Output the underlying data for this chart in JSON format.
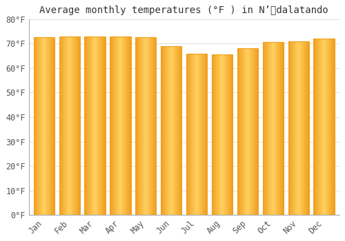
{
  "title": "Average monthly temperatures (°F ) in N’​dalatando",
  "months": [
    "Jan",
    "Feb",
    "Mar",
    "Apr",
    "May",
    "Jun",
    "Jul",
    "Aug",
    "Sep",
    "Oct",
    "Nov",
    "Dec"
  ],
  "values": [
    72.5,
    73,
    73,
    73,
    72.5,
    69,
    66,
    65.5,
    68,
    70.5,
    71,
    72
  ],
  "bar_color_center": "#FFD060",
  "bar_color_edge": "#F0A020",
  "background_color": "#ffffff",
  "plot_bg_color": "#ffffff",
  "grid_color": "#d8d8d8",
  "spine_color": "#aaaaaa",
  "title_fontsize": 10,
  "tick_fontsize": 8.5,
  "fig_width": 5.0,
  "fig_height": 3.5,
  "dpi": 100,
  "ylim": [
    0,
    80
  ],
  "yticks": [
    0,
    10,
    20,
    30,
    40,
    50,
    60,
    70,
    80
  ],
  "ytick_labels": [
    "0°F",
    "10°F",
    "20°F",
    "30°F",
    "40°F",
    "50°F",
    "60°F",
    "70°F",
    "80°F"
  ]
}
